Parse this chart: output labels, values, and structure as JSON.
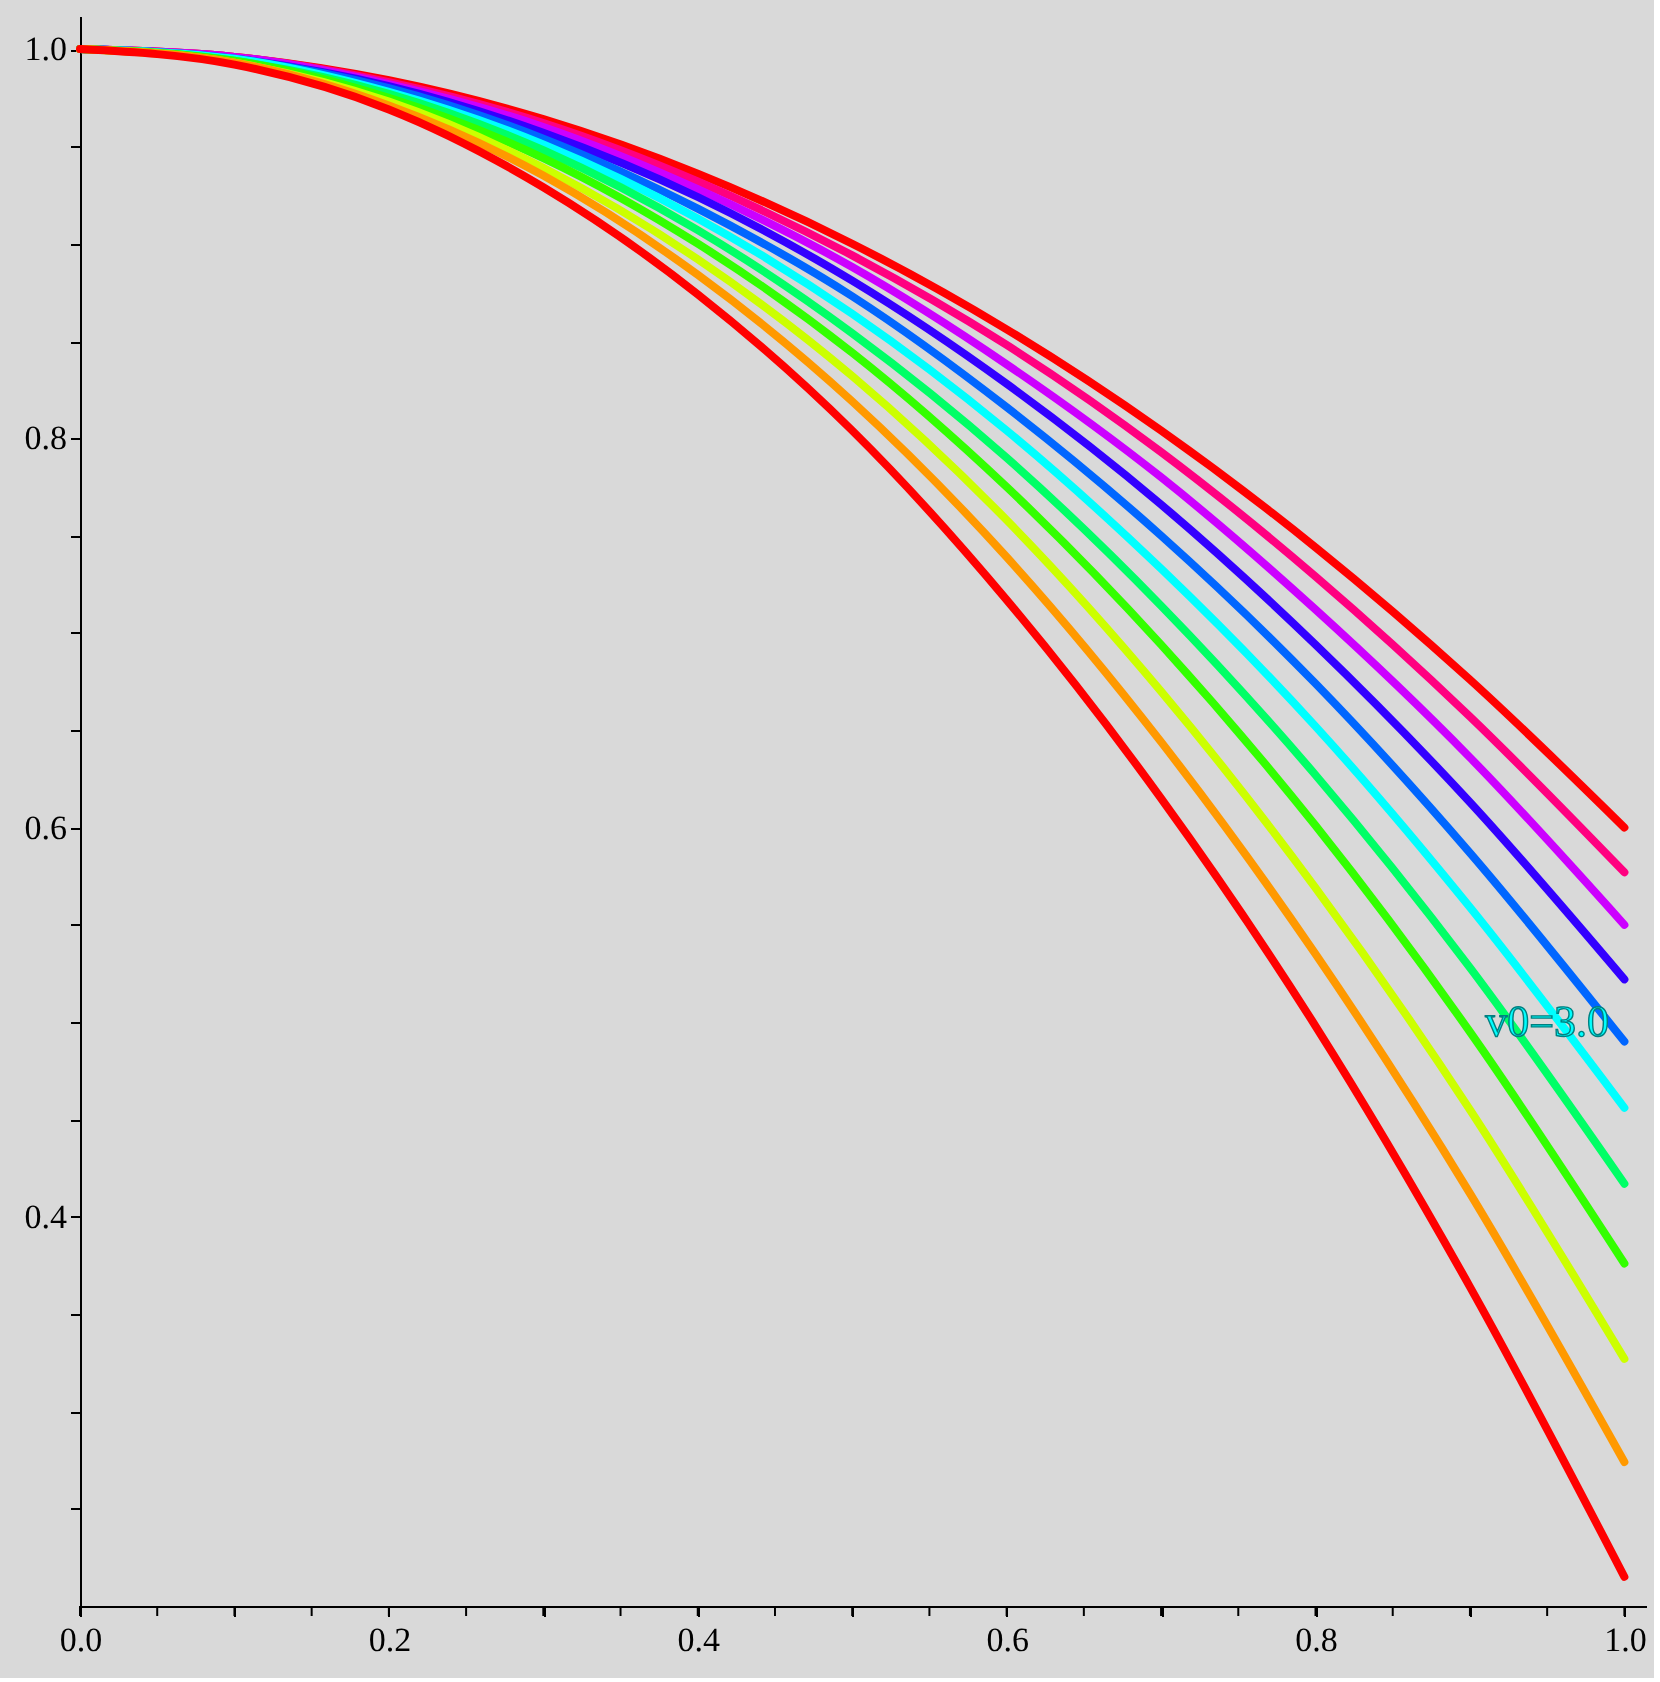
{
  "chart_data": {
    "type": "line",
    "x": [
      0,
      0.1,
      0.2,
      0.3,
      0.4,
      0.5,
      0.6,
      0.7,
      0.8,
      0.9,
      1.0
    ],
    "series": [
      {
        "color": "#ff0000",
        "values": [
          1,
          0.996,
          0.984,
          0.964,
          0.936,
          0.9,
          0.856,
          0.804,
          0.744,
          0.676,
          0.6
        ]
      },
      {
        "color": "#ff0080",
        "values": [
          1,
          0.996,
          0.983,
          0.962,
          0.932,
          0.894,
          0.848,
          0.793,
          0.729,
          0.657,
          0.577
        ]
      },
      {
        "color": "#cc00ff",
        "values": [
          1,
          0.996,
          0.982,
          0.96,
          0.928,
          0.888,
          0.838,
          0.78,
          0.712,
          0.636,
          0.55
        ]
      },
      {
        "color": "#3300ff",
        "values": [
          1,
          0.995,
          0.981,
          0.957,
          0.924,
          0.881,
          0.828,
          0.766,
          0.694,
          0.613,
          0.522
        ]
      },
      {
        "color": "#0066ff",
        "values": [
          1,
          0.995,
          0.98,
          0.954,
          0.918,
          0.873,
          0.816,
          0.75,
          0.674,
          0.587,
          0.49
        ]
      },
      {
        "color": "#00ffff",
        "values": [
          1,
          0.995,
          0.978,
          0.951,
          0.913,
          0.864,
          0.804,
          0.733,
          0.652,
          0.559,
          0.456
        ]
      },
      {
        "color": "#00ff66",
        "values": [
          1,
          0.994,
          0.977,
          0.948,
          0.907,
          0.854,
          0.79,
          0.714,
          0.627,
          0.528,
          0.417
        ]
      },
      {
        "color": "#33ff00",
        "values": [
          1,
          0.994,
          0.975,
          0.944,
          0.9,
          0.844,
          0.775,
          0.694,
          0.601,
          0.495,
          0.376
        ]
      },
      {
        "color": "#ccff00",
        "values": [
          1,
          0.993,
          0.973,
          0.939,
          0.892,
          0.832,
          0.758,
          0.67,
          0.569,
          0.455,
          0.327
        ]
      },
      {
        "color": "#ff9900",
        "values": [
          1,
          0.993,
          0.971,
          0.935,
          0.884,
          0.819,
          0.739,
          0.644,
          0.535,
          0.412,
          0.274
        ]
      },
      {
        "color": "#ff0000",
        "values": [
          1,
          0.992,
          0.969,
          0.929,
          0.874,
          0.804,
          0.717,
          0.615,
          0.498,
          0.364,
          0.215
        ]
      }
    ],
    "annotations": [
      {
        "text": "v0=3.0",
        "x": 0.95,
        "y": 0.5
      }
    ],
    "xlim": [
      0,
      1.014
    ],
    "ylim": [
      0.2,
      1.017
    ],
    "xticks": [
      {
        "value": 0,
        "label": "0.0"
      },
      {
        "value": 0.05,
        "label": null
      },
      {
        "value": 0.1,
        "label": null
      },
      {
        "value": 0.15,
        "label": null
      },
      {
        "value": 0.2,
        "label": "0.2"
      },
      {
        "value": 0.25,
        "label": null
      },
      {
        "value": 0.3,
        "label": null
      },
      {
        "value": 0.35,
        "label": null
      },
      {
        "value": 0.4,
        "label": "0.4"
      },
      {
        "value": 0.45,
        "label": null
      },
      {
        "value": 0.5,
        "label": null
      },
      {
        "value": 0.55,
        "label": null
      },
      {
        "value": 0.6,
        "label": "0.6"
      },
      {
        "value": 0.65,
        "label": null
      },
      {
        "value": 0.7,
        "label": null
      },
      {
        "value": 0.75,
        "label": null
      },
      {
        "value": 0.8,
        "label": "0.8"
      },
      {
        "value": 0.85,
        "label": null
      },
      {
        "value": 0.9,
        "label": null
      },
      {
        "value": 0.95,
        "label": null
      },
      {
        "value": 1.0,
        "label": "1.0"
      }
    ],
    "yticks": [
      {
        "value": 0.25,
        "label": null
      },
      {
        "value": 0.3,
        "label": null
      },
      {
        "value": 0.35,
        "label": null
      },
      {
        "value": 0.4,
        "label": "0.4"
      },
      {
        "value": 0.45,
        "label": null
      },
      {
        "value": 0.5,
        "label": null
      },
      {
        "value": 0.55,
        "label": null
      },
      {
        "value": 0.6,
        "label": "0.6"
      },
      {
        "value": 0.65,
        "label": null
      },
      {
        "value": 0.7,
        "label": null
      },
      {
        "value": 0.75,
        "label": null
      },
      {
        "value": 0.8,
        "label": "0.8"
      },
      {
        "value": 0.85,
        "label": null
      },
      {
        "value": 0.9,
        "label": null
      },
      {
        "value": 0.95,
        "label": null
      },
      {
        "value": 1.0,
        "label": "1.0"
      }
    ],
    "marker": "none",
    "line_style": "solid"
  }
}
